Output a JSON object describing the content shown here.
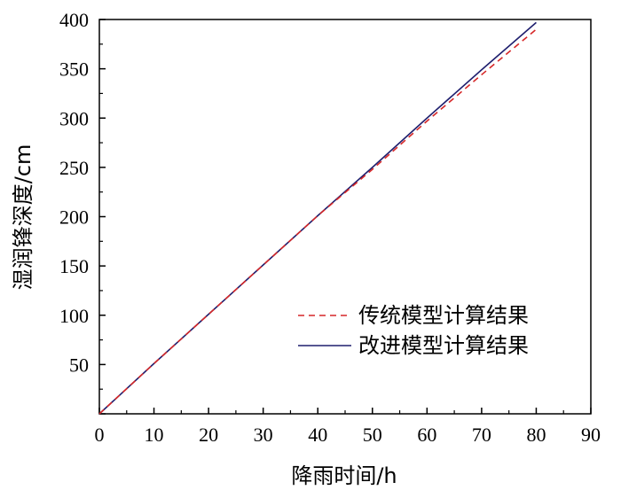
{
  "chart_data": {
    "type": "line",
    "xlabel": "降雨时间/h",
    "ylabel": "湿润锋深度/cm",
    "xlim": [
      0,
      90
    ],
    "ylim": [
      0,
      400
    ],
    "x_ticks": [
      0,
      10,
      20,
      30,
      40,
      50,
      60,
      70,
      80,
      90
    ],
    "y_ticks": [
      50,
      100,
      150,
      200,
      250,
      300,
      350,
      400
    ],
    "grid": false,
    "legend_position": "center-right",
    "series": [
      {
        "name": "传统模型计算结果",
        "style": "dashed",
        "color": "#d62728",
        "x": [
          0,
          10,
          20,
          30,
          40,
          50,
          60,
          70,
          80
        ],
        "y": [
          0,
          51,
          101,
          151,
          201,
          248,
          297,
          344,
          390
        ]
      },
      {
        "name": "改进模型计算结果",
        "style": "solid",
        "color": "#1f1f6e",
        "x": [
          0,
          10,
          20,
          30,
          40,
          50,
          60,
          70,
          80
        ],
        "y": [
          0,
          51,
          101,
          151,
          201,
          250,
          300,
          349,
          397
        ]
      }
    ]
  }
}
